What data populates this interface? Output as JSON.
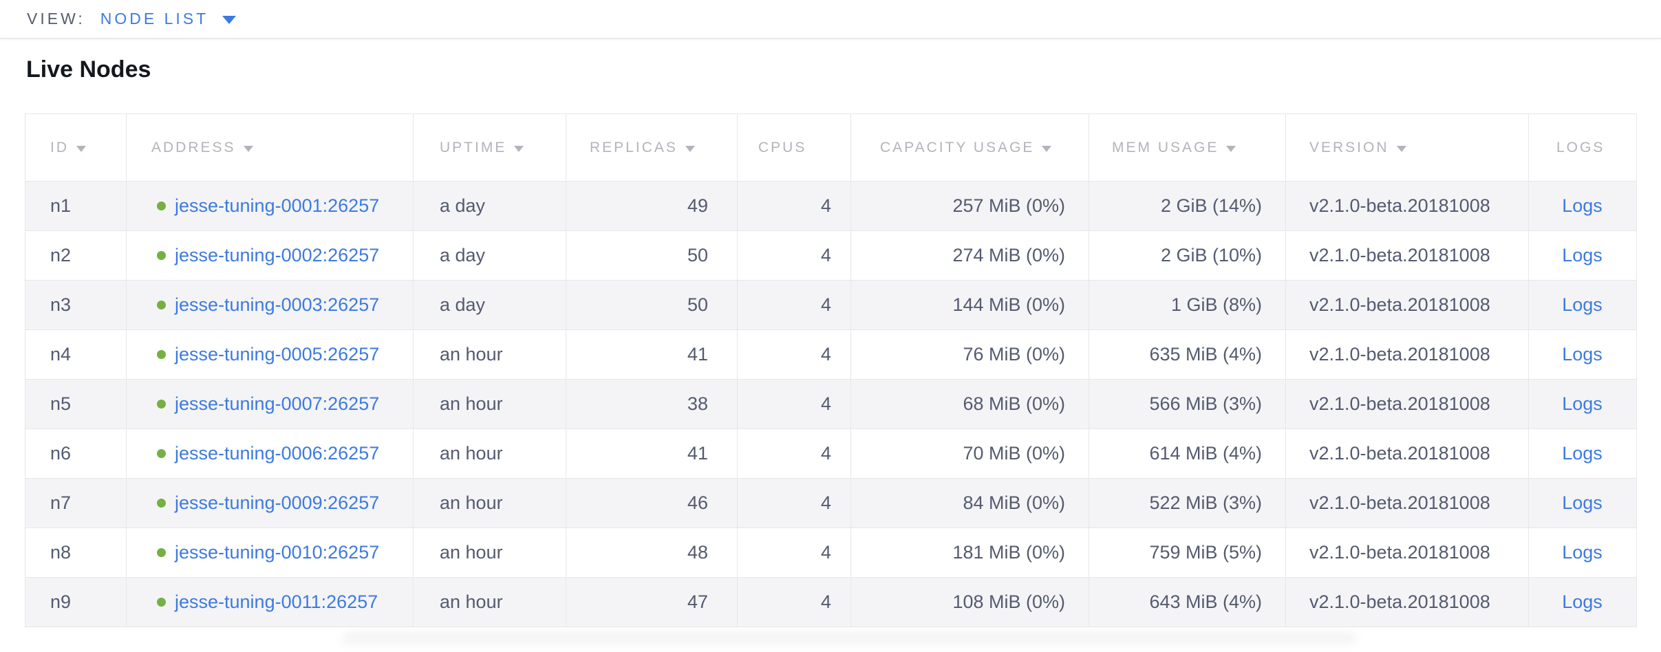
{
  "view_bar": {
    "label": "VIEW:",
    "selected": "NODE LIST"
  },
  "page": {
    "title": "Live Nodes"
  },
  "colors": {
    "link_blue": "#3d7ae0",
    "status_green": "#76b043",
    "header_gray": "#b2b4bc",
    "cell_text": "#545a70",
    "row_stripe": "#f4f4f6",
    "border": "#e7e7e9"
  },
  "table": {
    "logs_label": "Logs",
    "columns": [
      {
        "key": "id",
        "label": "ID",
        "sortable": true
      },
      {
        "key": "address",
        "label": "ADDRESS",
        "sortable": true
      },
      {
        "key": "uptime",
        "label": "UPTIME",
        "sortable": true
      },
      {
        "key": "replicas",
        "label": "REPLICAS",
        "sortable": true
      },
      {
        "key": "cpus",
        "label": "CPUS",
        "sortable": false
      },
      {
        "key": "capacity",
        "label": "CAPACITY USAGE",
        "sortable": true
      },
      {
        "key": "mem",
        "label": "MEM USAGE",
        "sortable": true
      },
      {
        "key": "version",
        "label": "VERSION",
        "sortable": true
      },
      {
        "key": "logs",
        "label": "LOGS",
        "sortable": false
      }
    ],
    "rows": [
      {
        "id": "n1",
        "status": "live",
        "address": "jesse-tuning-0001:26257",
        "uptime": "a day",
        "replicas": "49",
        "cpus": "4",
        "capacity": "257 MiB (0%)",
        "mem": "2 GiB (14%)",
        "version": "v2.1.0-beta.20181008"
      },
      {
        "id": "n2",
        "status": "live",
        "address": "jesse-tuning-0002:26257",
        "uptime": "a day",
        "replicas": "50",
        "cpus": "4",
        "capacity": "274 MiB (0%)",
        "mem": "2 GiB (10%)",
        "version": "v2.1.0-beta.20181008"
      },
      {
        "id": "n3",
        "status": "live",
        "address": "jesse-tuning-0003:26257",
        "uptime": "a day",
        "replicas": "50",
        "cpus": "4",
        "capacity": "144 MiB (0%)",
        "mem": "1 GiB (8%)",
        "version": "v2.1.0-beta.20181008"
      },
      {
        "id": "n4",
        "status": "live",
        "address": "jesse-tuning-0005:26257",
        "uptime": "an hour",
        "replicas": "41",
        "cpus": "4",
        "capacity": "76 MiB (0%)",
        "mem": "635 MiB (4%)",
        "version": "v2.1.0-beta.20181008"
      },
      {
        "id": "n5",
        "status": "live",
        "address": "jesse-tuning-0007:26257",
        "uptime": "an hour",
        "replicas": "38",
        "cpus": "4",
        "capacity": "68 MiB (0%)",
        "mem": "566 MiB (3%)",
        "version": "v2.1.0-beta.20181008"
      },
      {
        "id": "n6",
        "status": "live",
        "address": "jesse-tuning-0006:26257",
        "uptime": "an hour",
        "replicas": "41",
        "cpus": "4",
        "capacity": "70 MiB (0%)",
        "mem": "614 MiB (4%)",
        "version": "v2.1.0-beta.20181008"
      },
      {
        "id": "n7",
        "status": "live",
        "address": "jesse-tuning-0009:26257",
        "uptime": "an hour",
        "replicas": "46",
        "cpus": "4",
        "capacity": "84 MiB (0%)",
        "mem": "522 MiB (3%)",
        "version": "v2.1.0-beta.20181008"
      },
      {
        "id": "n8",
        "status": "live",
        "address": "jesse-tuning-0010:26257",
        "uptime": "an hour",
        "replicas": "48",
        "cpus": "4",
        "capacity": "181 MiB (0%)",
        "mem": "759 MiB (5%)",
        "version": "v2.1.0-beta.20181008"
      },
      {
        "id": "n9",
        "status": "live",
        "address": "jesse-tuning-0011:26257",
        "uptime": "an hour",
        "replicas": "47",
        "cpus": "4",
        "capacity": "108 MiB (0%)",
        "mem": "643 MiB (4%)",
        "version": "v2.1.0-beta.20181008"
      }
    ]
  }
}
